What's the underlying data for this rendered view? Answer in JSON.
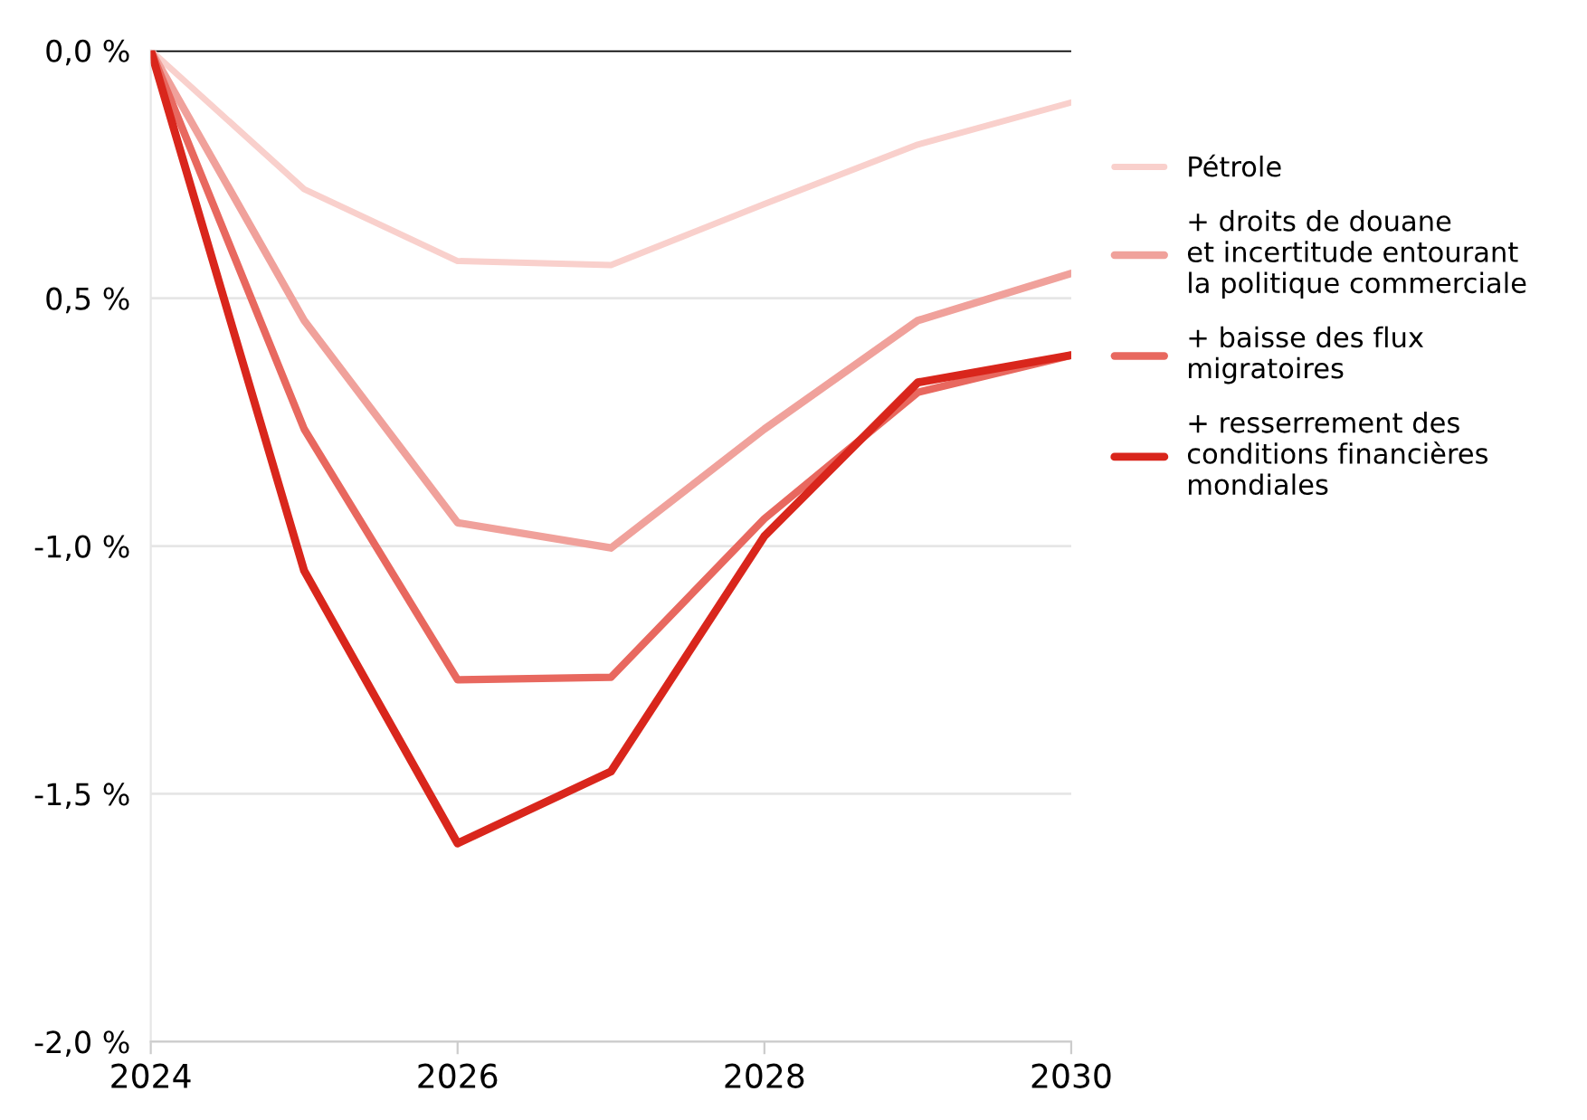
{
  "chart_data": {
    "type": "line",
    "x": [
      2024,
      2025,
      2026,
      2027,
      2028,
      2029,
      2030
    ],
    "series": [
      {
        "name": "Pétrole",
        "color": "#f9d0cc",
        "values": [
          0,
          -0.28,
          -0.425,
          -0.433,
          -0.31,
          -0.19,
          -0.105
        ]
      },
      {
        "name": "+ droits de douane\net incertitude entourant\nla politique commerciale",
        "color": "#f0a19b",
        "values": [
          0,
          -0.545,
          -0.953,
          -1.004,
          -0.764,
          -0.545,
          -0.45
        ]
      },
      {
        "name": "+ baisse des flux\nmigratoires",
        "color": "#e8685f",
        "values": [
          0,
          -0.764,
          -1.27,
          -1.265,
          -0.945,
          -0.69,
          -0.615
        ]
      },
      {
        "name": "+ resserrement des\nconditions financières\nmondiales",
        "color": "#d9261c",
        "values": [
          0,
          -1.05,
          -1.6,
          -1.455,
          -0.98,
          -0.67,
          -0.615
        ]
      }
    ],
    "xlim": [
      2024,
      2030
    ],
    "xticks": [
      2024,
      2026,
      2028,
      2030
    ],
    "ylim": [
      -2.0,
      0.0
    ],
    "yticks": [
      {
        "value": 0,
        "label": "0,0 %"
      },
      {
        "value": -0.5,
        "label": "0,5 %"
      },
      {
        "value": -1.0,
        "label": "-1,0 %"
      },
      {
        "value": -1.5,
        "label": "-1,5 %"
      },
      {
        "value": -2.0,
        "label": "-2,0 %"
      }
    ],
    "ref_lines": [
      {
        "axis": "y",
        "value": 0,
        "color": "#000000"
      }
    ],
    "grid": "y",
    "legend": "right",
    "marker": "none",
    "line_style": "solid"
  }
}
